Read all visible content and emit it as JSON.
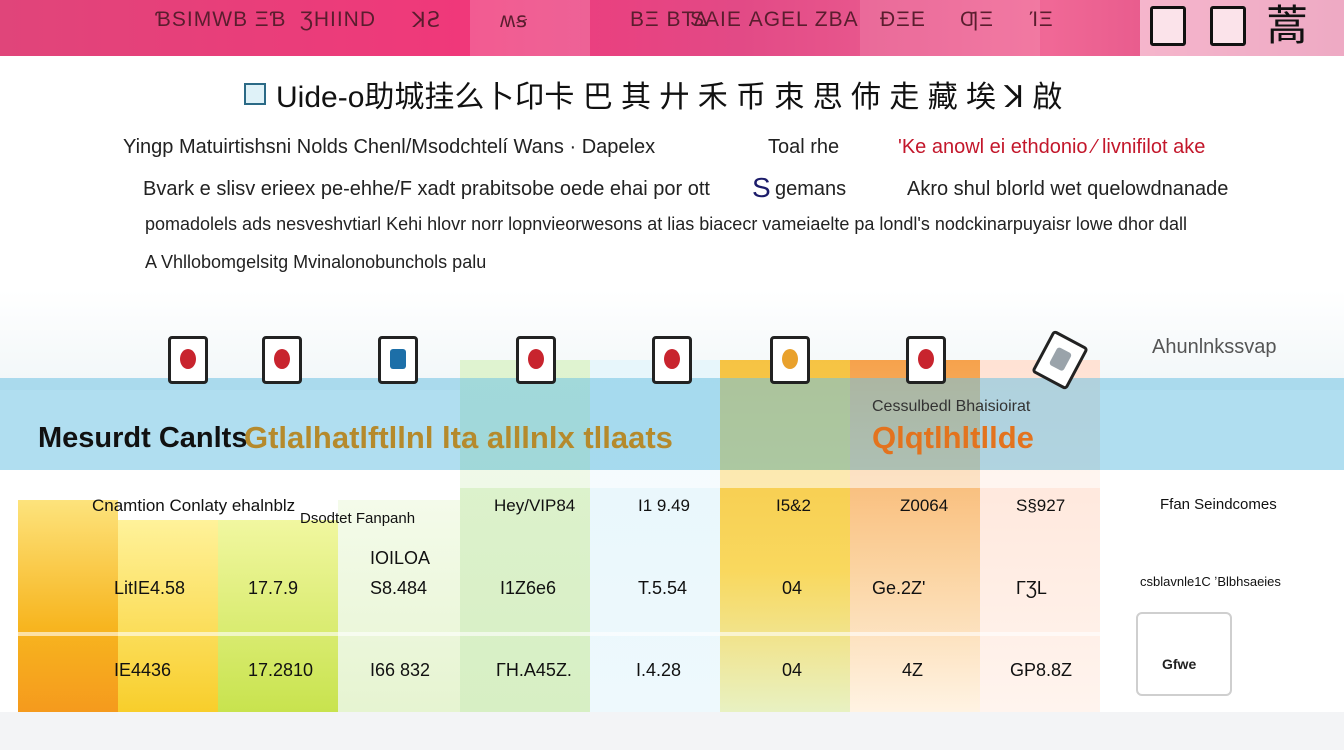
{
  "nav": {
    "items": [
      "ƁЅIMWB ΞƁ",
      "ƷHIIND",
      "ꓘꙄ",
      "ʍꞩ",
      "ΒΞ ΒΤΔ",
      "SAIE ΑGEL ZBA",
      "ĐΞЕ",
      "ƢΞ",
      "ΊΞ"
    ]
  },
  "header": {
    "title": "Uide-o助城挂么卜卬卡 巴 其 廾 禾 币 朿 思 伂 走 藏 埃 ꓘ 啟",
    "desc_line1": "Yingp Matuirtishsni Nolds Chenl/Msodchtelí Wans · Dapelex",
    "desc_line1b": "Toal rhe",
    "desc_line1c": "'Ke anowl ei ethdonio ⁄ livnifilot ake",
    "desc_line2": "Bvark e slisv erieex pe-ehhe/F xadt prabitsobe oede ehai por ott",
    "desc_line2_accent": "S",
    "desc_line2b": "gemans",
    "desc_line2c": "Akro shul blorld  wet quelowdnanade",
    "desc_line3": "pomadolels ads nesveshvtiarl Kehi hlovr norr lopnvieorwesons at lias biacecr  vameiaelte pa londl's nodckinarpuyaisr lowe dhor dall",
    "desc_line4": "A Vhllobomgelsitg Mvinalonobunchols palu"
  },
  "products": {
    "label": "Ahunlnkssvap",
    "section_title": "Mesurdt Canlts",
    "section_mark": "Gtlalhatlftllnl lta alllnlx tllaats",
    "section_mark_2": "Qlqtlhltllde",
    "caption": "Cessulbedl Bhaisioirat"
  },
  "table": {
    "headers": [
      "Cnamtion Conlaty ehalnblz",
      "Dsodtet Fanpanh",
      "Hey/VIP84",
      "I1 9.49",
      "I5&2",
      "Z0064",
      "S§927",
      "Ffan Seindcomes"
    ],
    "row0": [
      "",
      "IOILOA",
      "",
      "",
      "",
      "",
      "",
      ""
    ],
    "row1": [
      "LitIE4.58",
      "17.7.9",
      "S8.484",
      "I1Z6e6",
      "T.5.54",
      "04",
      "Ge.2Z'",
      "ΓƷL"
    ],
    "row2": [
      "IE4436",
      "17.2810",
      "I66 832",
      "ΓH.A45Z.",
      "I.4.28",
      "04",
      "4Z",
      "GP8.8Z"
    ],
    "side_note": "csblavnle1C ʼBlbhsaeies",
    "chip_label": "Gfwe"
  },
  "colors": {
    "brand_pink": "#e8427c",
    "accent_orange": "#e06a1c",
    "accent_yellow": "#f5c518",
    "accent_green": "#9fd23e",
    "accent_blue": "#5ec3e6"
  }
}
